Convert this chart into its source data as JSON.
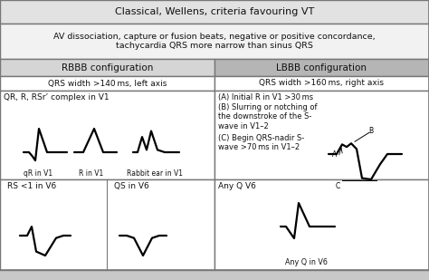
{
  "title": "Classical, Wellens, criteria favouring VT",
  "subtitle": "AV dissociation, capture or fusion beats, negative or positive concordance,\ntachycardia QRS more narrow than sinus QRS",
  "col1_header": "RBBB configuration",
  "col2_header": "LBBB configuration",
  "row1_col1": "QRS width >140 ms, left axis",
  "row1_col2": "QRS width >160 ms, right axis",
  "row2_col1": "QR, R, RSr’ complex in V1",
  "row2_col2_A": "(A) Initial R in V1 >30 ms",
  "row2_col2_B": "(B) Slurring or notching of\nthe downstroke of the S-\nwave in V1–2",
  "row2_col2_C": "(C) Begin QRS-nadir S-\nwave >70 ms in V1–2",
  "row3_col1_left": "RS <1 in V6",
  "row3_col1_right": "QS in V6",
  "row3_col2": "Any Q V6",
  "row3_col2_sub": "Any Q in V6",
  "bg_title": "#e2e2e2",
  "bg_subtitle": "#f2f2f2",
  "bg_col1_header": "#d5d5d5",
  "bg_col2_header": "#b5b5b5",
  "bg_white": "#ffffff",
  "border_color": "#777777",
  "text_color": "#111111",
  "fig_bg": "#c8c8c8"
}
